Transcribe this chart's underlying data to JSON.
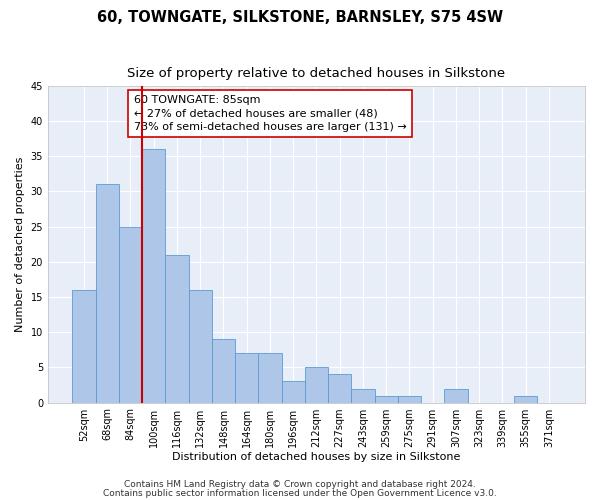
{
  "title": "60, TOWNGATE, SILKSTONE, BARNSLEY, S75 4SW",
  "subtitle": "Size of property relative to detached houses in Silkstone",
  "xlabel": "Distribution of detached houses by size in Silkstone",
  "ylabel": "Number of detached properties",
  "bar_labels": [
    "52sqm",
    "68sqm",
    "84sqm",
    "100sqm",
    "116sqm",
    "132sqm",
    "148sqm",
    "164sqm",
    "180sqm",
    "196sqm",
    "212sqm",
    "227sqm",
    "243sqm",
    "259sqm",
    "275sqm",
    "291sqm",
    "307sqm",
    "323sqm",
    "339sqm",
    "355sqm",
    "371sqm"
  ],
  "bar_values": [
    16,
    31,
    25,
    36,
    21,
    16,
    9,
    7,
    7,
    3,
    5,
    4,
    2,
    1,
    1,
    0,
    2,
    0,
    0,
    1,
    0
  ],
  "bar_color": "#aec6e8",
  "bar_edgecolor": "#5b9bd5",
  "ref_line_color": "#cc0000",
  "annotation_text": "60 TOWNGATE: 85sqm\n← 27% of detached houses are smaller (48)\n73% of semi-detached houses are larger (131) →",
  "annotation_box_color": "#ffffff",
  "annotation_box_edgecolor": "#cc0000",
  "ylim": [
    0,
    45
  ],
  "yticks": [
    0,
    5,
    10,
    15,
    20,
    25,
    30,
    35,
    40,
    45
  ],
  "footer_line1": "Contains HM Land Registry data © Crown copyright and database right 2024.",
  "footer_line2": "Contains public sector information licensed under the Open Government Licence v3.0.",
  "bg_color": "#e8eef8",
  "fig_color": "#ffffff",
  "grid_color": "#ffffff",
  "title_fontsize": 10.5,
  "subtitle_fontsize": 9.5,
  "axis_label_fontsize": 8,
  "tick_fontsize": 7,
  "annotation_fontsize": 8,
  "footer_fontsize": 6.5
}
